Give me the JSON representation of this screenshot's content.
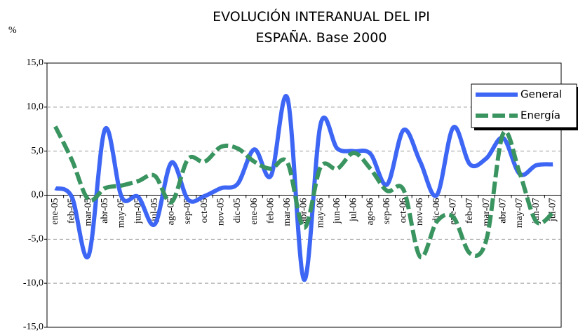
{
  "chart_data": {
    "type": "line",
    "title": "EVOLUCIÓN INTERANUAL DEL IPI",
    "subtitle": "ESPAÑA. Base 2000",
    "y_label": "%",
    "categories": [
      "ene-05",
      "feb-05",
      "mar-05",
      "abr-05",
      "may-05",
      "jun-05",
      "jul-05",
      "ago-05",
      "sep-05",
      "oct-05",
      "nov-05",
      "dic-05",
      "ene-06",
      "feb-06",
      "mar-06",
      "abr-06",
      "may-06",
      "jun-06",
      "jul-06",
      "ago-06",
      "sep-06",
      "oct-06",
      "nov-06",
      "dic-06",
      "ene-07",
      "feb-07",
      "mar-07",
      "abr-07",
      "may-07",
      "jun-07",
      "jul-07"
    ],
    "series": [
      {
        "name": "General",
        "color": "#3d66f5",
        "dashed": false,
        "values": [
          0.8,
          -0.2,
          -6.9,
          7.5,
          -0.2,
          -0.2,
          -3.3,
          3.7,
          -0.5,
          -0.1,
          0.8,
          1.3,
          5.2,
          2.2,
          11.0,
          -9.6,
          8.1,
          5.3,
          5.0,
          4.7,
          1.2,
          7.4,
          3.8,
          0.0,
          7.7,
          3.5,
          4.2,
          6.5,
          2.4,
          3.4,
          3.5
        ]
      },
      {
        "name": "Energía",
        "color": "#3a9460",
        "dashed": true,
        "values": [
          7.8,
          4.0,
          -0.5,
          0.8,
          1.1,
          1.6,
          2.2,
          -0.8,
          4.1,
          3.8,
          5.5,
          5.3,
          3.8,
          3.0,
          3.7,
          -3.7,
          3.2,
          3.0,
          4.8,
          3.0,
          0.5,
          0.6,
          -7.0,
          -3.0,
          -2.5,
          -6.6,
          -5.0,
          7.0,
          2.5,
          -3.0,
          -2.0
        ]
      }
    ],
    "ylim": [
      -15,
      15
    ],
    "yticks": [
      {
        "value": -15,
        "label": "-15,0"
      },
      {
        "value": -10,
        "label": "-10,0"
      },
      {
        "value": -5,
        "label": "-5,0"
      },
      {
        "value": 0,
        "label": "0,0"
      },
      {
        "value": 5,
        "label": "5,0"
      },
      {
        "value": 10,
        "label": "10,0"
      },
      {
        "value": 15,
        "label": "15,0"
      }
    ],
    "grid": true,
    "legend": "top-right"
  }
}
